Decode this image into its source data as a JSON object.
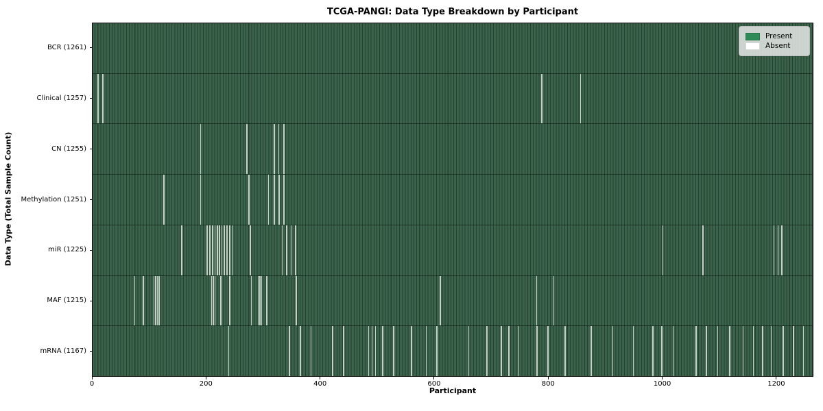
{
  "chart_data": {
    "type": "heatmap",
    "title": "TCGA-PANGI: Data Type Breakdown by Participant",
    "xlabel": "Participant",
    "ylabel": "Data Type (Total Sample Count)",
    "x_ticks": [
      0,
      200,
      400,
      600,
      800,
      1000,
      1200
    ],
    "x_max": 1265,
    "grid": false,
    "legend_position": "upper right",
    "legend": [
      {
        "label": "Present",
        "color": "#2e8b57"
      },
      {
        "label": "Absent",
        "color": "#ffffff"
      }
    ],
    "colors": {
      "present_fill": "#2e8b57",
      "present_rendered_light": "#3b624a",
      "present_rendered_dark": "#25402e",
      "absent_stripe": "#d2dbd3",
      "plot_border": "#000000"
    },
    "rows": [
      {
        "name": "BCR",
        "total": 1261,
        "display": "BCR (1261)",
        "absent": []
      },
      {
        "name": "Clinical",
        "total": 1257,
        "display": "Clinical (1257)",
        "absent": [
          9,
          17,
          788,
          856
        ]
      },
      {
        "name": "CN",
        "total": 1255,
        "display": "CN (1255)",
        "absent": [
          189,
          270,
          318,
          326,
          335
        ]
      },
      {
        "name": "Methylation",
        "total": 1251,
        "display": "Methylation (1251)",
        "absent": [
          124,
          189,
          274,
          308,
          318,
          327,
          335
        ]
      },
      {
        "name": "miR",
        "total": 1225,
        "display": "miR (1225)",
        "absent": [
          156,
          200,
          205,
          210,
          214,
          218,
          222,
          226,
          230,
          235,
          240,
          244,
          276,
          332,
          340,
          348,
          356,
          1001,
          1071,
          1196,
          1203,
          1210
        ]
      },
      {
        "name": "MAF",
        "total": 1215,
        "display": "MAF (1215)",
        "absent": [
          73,
          88,
          107,
          110,
          113,
          116,
          208,
          211,
          214,
          224,
          240,
          278,
          290,
          293,
          296,
          305,
          357,
          610,
          779,
          809
        ]
      },
      {
        "name": "mRNA",
        "total": 1167,
        "display": "mRNA (1167)",
        "absent": [
          238,
          345,
          364,
          383,
          421,
          440,
          484,
          490,
          496,
          509,
          528,
          559,
          585,
          604,
          660,
          692,
          717,
          730,
          748,
          780,
          799,
          829,
          875,
          913,
          949,
          983,
          999,
          1019,
          1059,
          1077,
          1097,
          1118,
          1142,
          1160,
          1176,
          1191,
          1212,
          1230,
          1248
        ]
      }
    ]
  }
}
